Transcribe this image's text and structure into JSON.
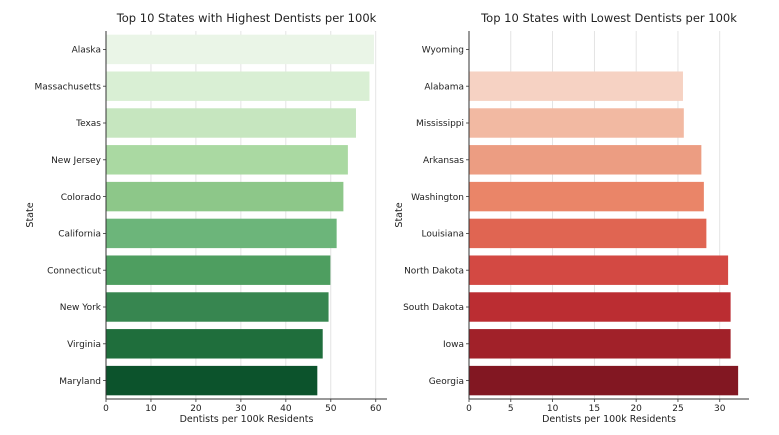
{
  "chart_data": [
    {
      "type": "bar",
      "orientation": "horizontal",
      "title": "Top 10 States with Highest Dentists per 100k",
      "xlabel": "Dentists per 100k Residents",
      "ylabel": "State",
      "categories": [
        "Alaska",
        "Massachusetts",
        "Texas",
        "New Jersey",
        "Colorado",
        "California",
        "Connecticut",
        "New York",
        "Virginia",
        "Maryland"
      ],
      "values": [
        59.6,
        58.6,
        55.6,
        53.8,
        52.8,
        51.3,
        49.9,
        49.5,
        48.2,
        47.0
      ],
      "xlim": [
        0,
        62.5
      ],
      "xticks": [
        0,
        10,
        20,
        30,
        40,
        50,
        60
      ],
      "colors": [
        "#eaf5e7",
        "#d9efd4",
        "#c6e6bf",
        "#aad9a2",
        "#8dc789",
        "#6cb57a",
        "#4e9e60",
        "#378650",
        "#1f6e3c",
        "#0c532c"
      ],
      "grid": "vertical"
    },
    {
      "type": "bar",
      "orientation": "horizontal",
      "title": "Top 10 States with Lowest Dentists per 100k",
      "xlabel": "Dentists per 100k Residents",
      "ylabel": "State",
      "categories": [
        "Wyoming",
        "Alabama",
        "Mississippi",
        "Arkansas",
        "Washington",
        "Louisiana",
        "North Dakota",
        "South Dakota",
        "Iowa",
        "Georgia"
      ],
      "values": [
        0,
        25.6,
        25.7,
        27.8,
        28.1,
        28.4,
        31.0,
        31.3,
        31.3,
        32.2
      ],
      "xlim": [
        0,
        33.5
      ],
      "xticks": [
        0,
        5,
        10,
        15,
        20,
        25,
        30
      ],
      "colors": [
        "#fde8df",
        "#f6d2c3",
        "#f2b9a2",
        "#ec9d82",
        "#ea8568",
        "#e06552",
        "#d34943",
        "#bb2d32",
        "#a12129",
        "#821722"
      ],
      "grid": "vertical"
    }
  ]
}
